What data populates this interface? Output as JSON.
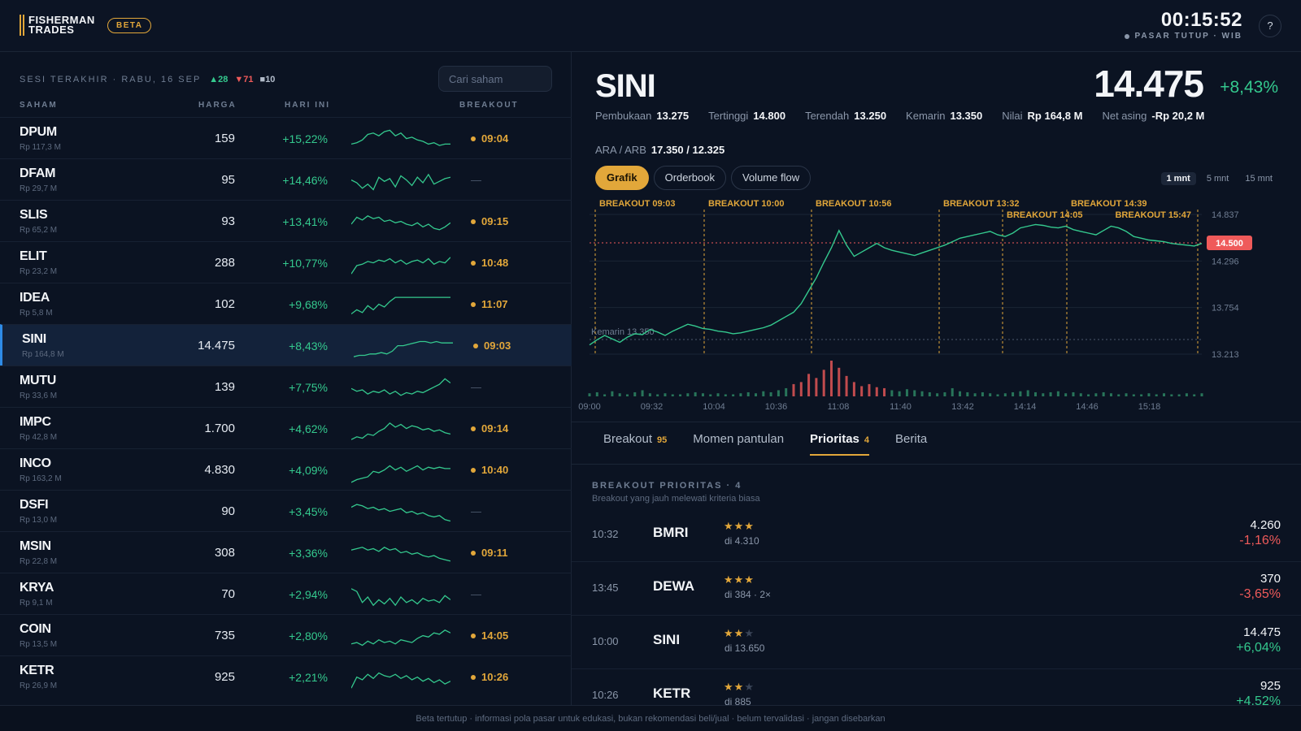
{
  "header": {
    "logo_line1": "FISHERMAN",
    "logo_line2": "TRADES",
    "beta": "BETA",
    "clock": "00:15:52",
    "market_status": "PASAR TUTUP · WIB",
    "help": "?"
  },
  "watchlist": {
    "session": "SESI TERAKHIR · RABU, 16 SEP",
    "up_count": "▲28",
    "down_count": "▼71",
    "flat_count": "■10",
    "search_placeholder": "Cari saham",
    "col_ticker": "SAHAM",
    "col_price": "HARGA",
    "col_today": "HARI INI",
    "col_breakout": "BREAKOUT",
    "rows": [
      {
        "ticker": "DPUM",
        "value": "Rp 117,3 M",
        "price": "159",
        "change": "+15,22%",
        "breakout": "09:04",
        "spark": [
          12,
          11,
          9,
          5,
          4,
          6,
          3,
          2,
          6,
          4,
          8,
          7,
          9,
          10,
          12,
          11,
          13,
          12,
          12
        ]
      },
      {
        "ticker": "DFAM",
        "value": "Rp 29,7 M",
        "price": "95",
        "change": "+14,46%",
        "breakout": "—",
        "spark": [
          8,
          10,
          14,
          11,
          15,
          6,
          9,
          7,
          13,
          5,
          8,
          12,
          6,
          10,
          4,
          11,
          9,
          7,
          6
        ]
      },
      {
        "ticker": "SLIS",
        "value": "Rp 65,2 M",
        "price": "93",
        "change": "+13,41%",
        "breakout": "09:15",
        "spark": [
          10,
          5,
          7,
          4,
          6,
          5,
          8,
          7,
          9,
          8,
          10,
          11,
          9,
          12,
          10,
          13,
          14,
          12,
          9
        ]
      },
      {
        "ticker": "ELIT",
        "value": "Rp 23,2 M",
        "price": "288",
        "change": "+10,77%",
        "breakout": "10:48",
        "spark": [
          16,
          10,
          9,
          7,
          8,
          6,
          7,
          5,
          8,
          6,
          9,
          7,
          6,
          8,
          5,
          9,
          7,
          8,
          4
        ]
      },
      {
        "ticker": "IDEA",
        "value": "Rp 5,8 M",
        "price": "102",
        "change": "+9,68%",
        "breakout": "11:07",
        "spark": [
          15,
          12,
          14,
          9,
          12,
          8,
          10,
          6,
          3,
          3,
          3,
          3,
          3,
          3,
          3,
          3,
          3,
          3,
          3
        ]
      },
      {
        "ticker": "SINI",
        "value": "Rp 164,8 M",
        "price": "14.475",
        "change": "+8,43%",
        "breakout": "09:03",
        "spark": [
          16,
          15,
          15,
          14,
          14,
          13,
          14,
          12,
          8,
          8,
          7,
          6,
          5,
          5,
          6,
          5,
          6,
          6,
          6
        ]
      },
      {
        "ticker": "MUTU",
        "value": "Rp 33,6 M",
        "price": "139",
        "change": "+7,75%",
        "breakout": "—",
        "spark": [
          9,
          11,
          10,
          13,
          11,
          12,
          10,
          13,
          11,
          14,
          12,
          13,
          11,
          12,
          10,
          8,
          6,
          2,
          5
        ]
      },
      {
        "ticker": "IMPC",
        "value": "Rp 42,8 M",
        "price": "1.700",
        "change": "+4,62%",
        "breakout": "09:14",
        "spark": [
          16,
          14,
          15,
          12,
          13,
          10,
          8,
          4,
          7,
          5,
          8,
          6,
          7,
          9,
          8,
          10,
          9,
          11,
          12
        ]
      },
      {
        "ticker": "INCO",
        "value": "Rp 163,2 M",
        "price": "4.830",
        "change": "+4,09%",
        "breakout": "10:40",
        "spark": [
          17,
          15,
          14,
          13,
          9,
          10,
          8,
          5,
          8,
          6,
          9,
          7,
          5,
          8,
          6,
          7,
          6,
          7,
          7
        ]
      },
      {
        "ticker": "DSFI",
        "value": "Rp 13,0 M",
        "price": "90",
        "change": "+3,45%",
        "breakout": "—",
        "spark": [
          5,
          3,
          4,
          6,
          5,
          7,
          6,
          8,
          7,
          6,
          9,
          8,
          10,
          9,
          11,
          12,
          11,
          14,
          15
        ]
      },
      {
        "ticker": "MSIN",
        "value": "Rp 22,8 M",
        "price": "308",
        "change": "+3,36%",
        "breakout": "09:11",
        "spark": [
          6,
          5,
          4,
          6,
          5,
          7,
          4,
          6,
          5,
          8,
          7,
          9,
          8,
          10,
          11,
          10,
          12,
          13,
          14
        ]
      },
      {
        "ticker": "KRYA",
        "value": "Rp 9,1 M",
        "price": "70",
        "change": "+2,94%",
        "breakout": "—",
        "spark": [
          4,
          6,
          14,
          10,
          16,
          12,
          15,
          11,
          16,
          10,
          14,
          12,
          15,
          11,
          13,
          12,
          14,
          9,
          12
        ]
      },
      {
        "ticker": "COIN",
        "value": "Rp 13,5 M",
        "price": "735",
        "change": "+2,80%",
        "breakout": "14:05",
        "spark": [
          14,
          13,
          15,
          12,
          14,
          11,
          13,
          12,
          14,
          11,
          12,
          13,
          10,
          8,
          9,
          6,
          7,
          4,
          6
        ]
      },
      {
        "ticker": "KETR",
        "value": "Rp 26,9 M",
        "price": "925",
        "change": "+2,21%",
        "breakout": "10:26",
        "spark": [
          16,
          8,
          10,
          6,
          9,
          5,
          7,
          8,
          6,
          9,
          7,
          10,
          8,
          11,
          9,
          12,
          10,
          13,
          11
        ]
      }
    ]
  },
  "detail": {
    "symbol": "SINI",
    "price": "14.475",
    "change": "+8,43%",
    "stats": [
      {
        "label": "Pembukaan",
        "value": "13.275"
      },
      {
        "label": "Tertinggi",
        "value": "14.800"
      },
      {
        "label": "Terendah",
        "value": "13.250"
      },
      {
        "label": "Kemarin",
        "value": "13.350"
      },
      {
        "label": "Nilai",
        "value": "Rp 164,8 M"
      },
      {
        "label": "Net asing",
        "value": "-Rp 20,2 M"
      }
    ],
    "ara_label": "ARA / ARB",
    "ara_value": "17.350 / 12.325",
    "view_tabs": [
      "Grafik",
      "Orderbook",
      "Volume flow"
    ],
    "timeframes": [
      "1 mnt",
      "5 mnt",
      "15 mnt"
    ],
    "accent_color": "#e2a73a",
    "up_color": "#34c98e",
    "down_color": "#ef5a5a"
  },
  "chart_data": {
    "type": "line",
    "title": "",
    "x_ticks": [
      "09:00",
      "09:32",
      "10:04",
      "10:36",
      "11:08",
      "11:40",
      "13:42",
      "14:14",
      "14:46",
      "15:18"
    ],
    "y_ticks": [
      "14.837",
      "14.296",
      "13.754",
      "13.213"
    ],
    "ylim": [
      13213,
      14837
    ],
    "current_price_label": "14.500",
    "prev_close_label": "Kemarin 13.350",
    "breakouts": [
      "BREAKOUT 09:03",
      "BREAKOUT 10:00",
      "BREAKOUT 10:56",
      "BREAKOUT 13:32",
      "BREAKOUT 14:05",
      "BREAKOUT 14:39",
      "BREAKOUT 15:47"
    ],
    "price_path": [
      13320,
      13380,
      13430,
      13390,
      13350,
      13410,
      13450,
      13440,
      13500,
      13470,
      13430,
      13480,
      13520,
      13560,
      13540,
      13510,
      13500,
      13480,
      13470,
      13450,
      13460,
      13480,
      13500,
      13520,
      13550,
      13600,
      13650,
      13700,
      13800,
      13950,
      14100,
      14280,
      14450,
      14650,
      14480,
      14350,
      14400,
      14450,
      14500,
      14450,
      14420,
      14400,
      14380,
      14360,
      14390,
      14420,
      14450,
      14480,
      14520,
      14560,
      14580,
      14600,
      14620,
      14640,
      14600,
      14580,
      14620,
      14680,
      14700,
      14720,
      14710,
      14690,
      14680,
      14700,
      14660,
      14640,
      14620,
      14600,
      14650,
      14700,
      14680,
      14640,
      14580,
      14560,
      14540,
      14530,
      14520,
      14500,
      14490,
      14480,
      14470,
      14500
    ],
    "volume": [
      3,
      4,
      2,
      5,
      3,
      2,
      4,
      6,
      3,
      2,
      3,
      2,
      2,
      3,
      4,
      3,
      2,
      3,
      2,
      2,
      3,
      4,
      3,
      5,
      4,
      6,
      8,
      12,
      14,
      22,
      18,
      26,
      35,
      28,
      20,
      14,
      10,
      12,
      9,
      8,
      6,
      5,
      7,
      6,
      5,
      4,
      3,
      4,
      8,
      5,
      4,
      3,
      4,
      3,
      2,
      3,
      4,
      5,
      6,
      4,
      3,
      4,
      5,
      3,
      4,
      3,
      2,
      3,
      4,
      3,
      2,
      3,
      2,
      2,
      3,
      2,
      3,
      2,
      2,
      3,
      2,
      3
    ]
  },
  "feed": {
    "tabs": [
      {
        "label": "Breakout",
        "badge": "95"
      },
      {
        "label": "Momen pantulan",
        "badge": ""
      },
      {
        "label": "Prioritas",
        "badge": "4"
      },
      {
        "label": "Berita",
        "badge": ""
      }
    ],
    "section_title": "BREAKOUT PRIORITAS · 4",
    "section_subtitle": "Breakout yang jauh melewati kriteria biasa",
    "items": [
      {
        "time": "10:32",
        "ticker": "BMRI",
        "stars_on": "★★★",
        "stars_off": "",
        "note": "di 4.310",
        "price": "4.260",
        "change": "-1,16%",
        "dir": "down"
      },
      {
        "time": "13:45",
        "ticker": "DEWA",
        "stars_on": "★★★",
        "stars_off": "",
        "note": "di 384 · 2×",
        "price": "370",
        "change": "-3,65%",
        "dir": "down"
      },
      {
        "time": "10:00",
        "ticker": "SINI",
        "stars_on": "★★",
        "stars_off": "★",
        "note": "di 13.650",
        "price": "14.475",
        "change": "+6,04%",
        "dir": "up"
      },
      {
        "time": "10:26",
        "ticker": "KETR",
        "stars_on": "★★",
        "stars_off": "★",
        "note": "di 885",
        "price": "925",
        "change": "+4,52%",
        "dir": "up"
      }
    ]
  },
  "footer": {
    "disclaimer": "Beta tertutup · informasi pola pasar untuk edukasi, bukan rekomendasi beli/jual · belum tervalidasi · jangan disebarkan"
  }
}
